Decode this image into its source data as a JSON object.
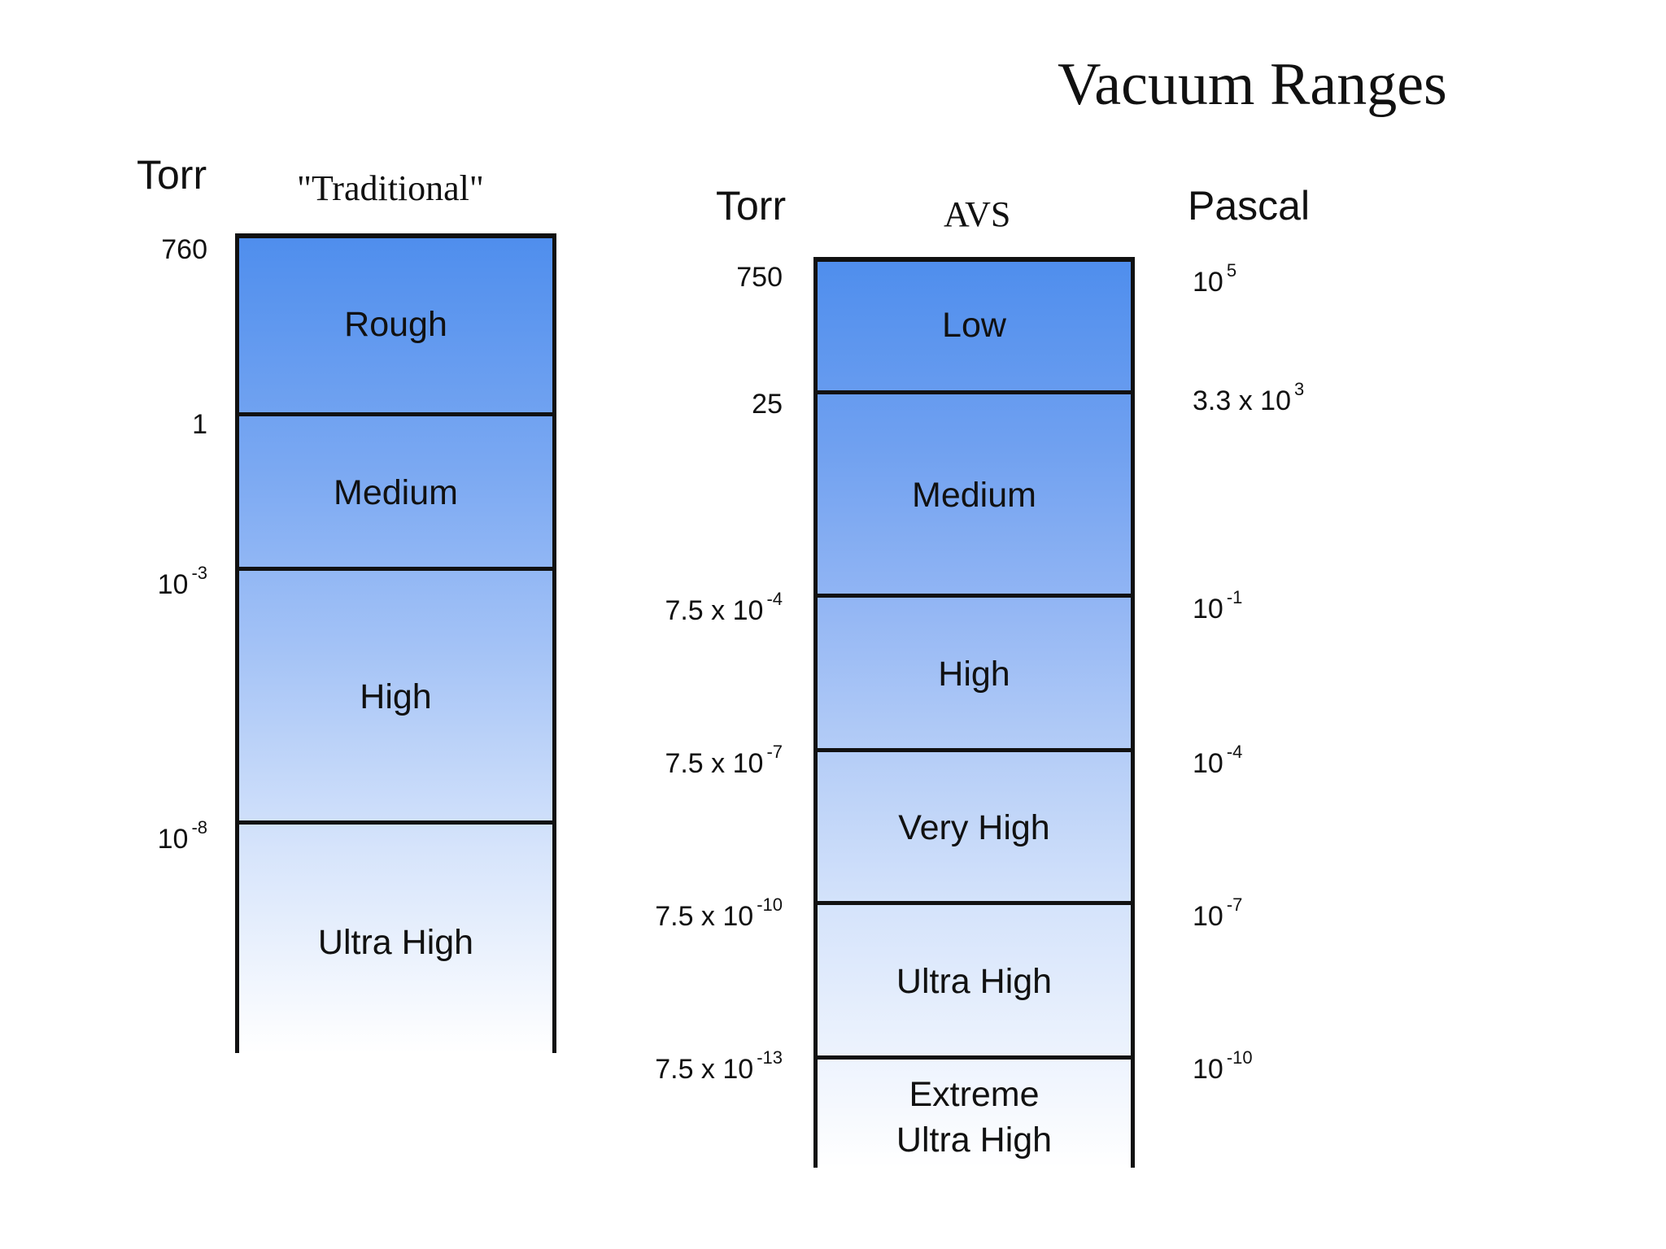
{
  "title": "Vacuum Ranges",
  "traditional": {
    "unit_header": "Torr",
    "scale_header": "\"Traditional\"",
    "ranges": [
      "Rough",
      "Medium",
      "High",
      "Ultra High"
    ],
    "boundaries": [
      {
        "base": "760",
        "exp": ""
      },
      {
        "base": "1",
        "exp": ""
      },
      {
        "base": "10",
        "exp": "-3"
      },
      {
        "base": "10",
        "exp": "-8"
      }
    ]
  },
  "avs": {
    "unit_header": "Torr",
    "scale_header": "AVS",
    "pascal_header": "Pascal",
    "ranges": [
      "Low",
      "Medium",
      "High",
      "Very High",
      "Ultra High",
      "Extreme Ultra High"
    ],
    "torr_boundaries": [
      {
        "base": "750",
        "exp": ""
      },
      {
        "base": "25",
        "exp": ""
      },
      {
        "base": "7.5 x 10",
        "exp": "-4"
      },
      {
        "base": "7.5 x 10",
        "exp": "-7"
      },
      {
        "base": "7.5 x 10",
        "exp": "-10"
      },
      {
        "base": "7.5 x 10",
        "exp": "-13"
      }
    ],
    "pascal_boundaries": [
      {
        "base": "10",
        "exp": "5"
      },
      {
        "base": "3.3 x 10",
        "exp": "3"
      },
      {
        "base": "10",
        "exp": "-1"
      },
      {
        "base": "10",
        "exp": "-4"
      },
      {
        "base": "10",
        "exp": "-7"
      },
      {
        "base": "10",
        "exp": "-10"
      }
    ]
  }
}
